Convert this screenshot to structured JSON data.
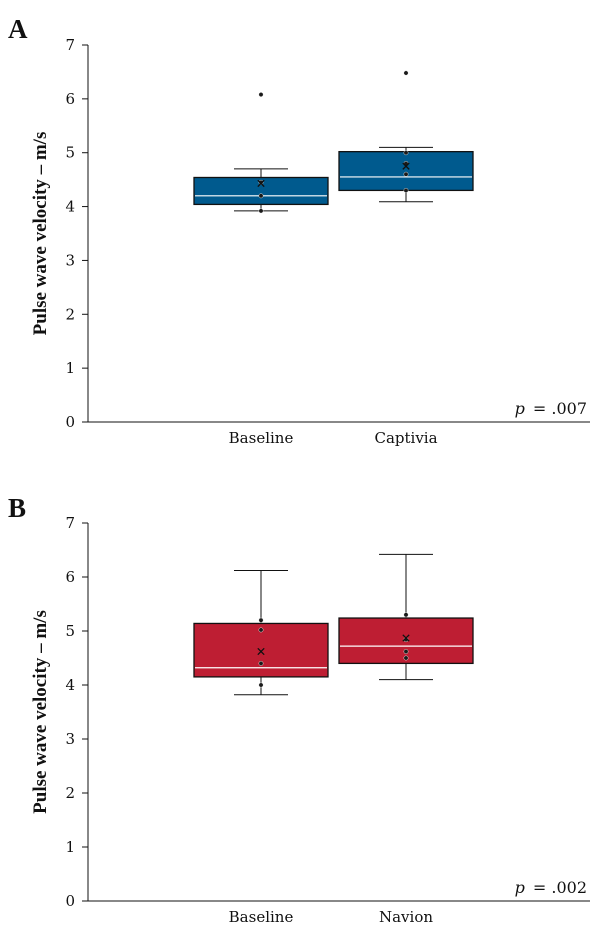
{
  "chart_data": [
    {
      "type": "box",
      "panel": "A",
      "ylabel": "Pulse wave velocity – m/s",
      "ylim": [
        0,
        7
      ],
      "yticks": [
        0,
        1,
        2,
        3,
        4,
        5,
        6,
        7
      ],
      "categories": [
        "Baseline",
        "Captivia"
      ],
      "box_color": "#005a8e",
      "annotation": {
        "p_symbol": "p",
        "p_value": "= .007"
      },
      "boxes": [
        {
          "category": "Baseline",
          "whisker_low": 3.92,
          "q1": 4.04,
          "median": 4.2,
          "q3": 4.54,
          "whisker_high": 4.7,
          "mean": 4.43,
          "points": [
            3.92,
            4.2,
            4.45,
            6.08
          ]
        },
        {
          "category": "Captivia",
          "whisker_low": 4.09,
          "q1": 4.3,
          "median": 4.55,
          "q3": 5.02,
          "whisker_high": 5.1,
          "mean": 4.75,
          "points": [
            4.3,
            4.6,
            4.8,
            5.0,
            6.48
          ]
        }
      ]
    },
    {
      "type": "box",
      "panel": "B",
      "ylabel": "Pulse wave velocity – m/s",
      "ylim": [
        0,
        7
      ],
      "yticks": [
        0,
        1,
        2,
        3,
        4,
        5,
        6,
        7
      ],
      "categories": [
        "Baseline",
        "Navion"
      ],
      "box_color": "#be1e33",
      "annotation": {
        "p_symbol": "p",
        "p_value": "= .002"
      },
      "boxes": [
        {
          "category": "Baseline",
          "whisker_low": 3.82,
          "q1": 4.15,
          "median": 4.32,
          "q3": 5.14,
          "whisker_high": 6.12,
          "mean": 4.62,
          "points": [
            4.0,
            4.4,
            5.02,
            5.2
          ]
        },
        {
          "category": "Navion",
          "whisker_low": 4.1,
          "q1": 4.4,
          "median": 4.72,
          "q3": 5.24,
          "whisker_high": 6.42,
          "mean": 4.87,
          "points": [
            4.5,
            4.62,
            4.84,
            5.3
          ]
        }
      ]
    }
  ]
}
